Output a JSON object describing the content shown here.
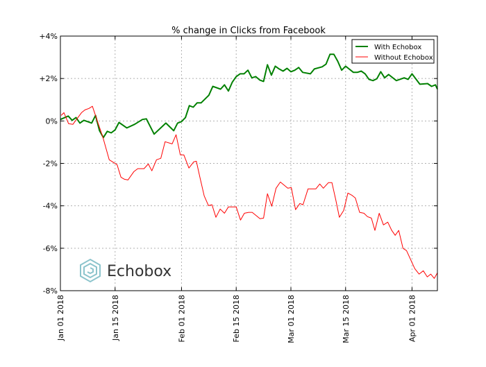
{
  "chart_data": {
    "type": "line",
    "title": "% change in Clicks from Facebook",
    "xlabel": "",
    "ylabel": "",
    "x_unit": "days since Jan 01 2018",
    "xlim": [
      0,
      96.5
    ],
    "ylim": [
      -8,
      4
    ],
    "grid": true,
    "legend_position": "top-right",
    "y_ticks": [
      {
        "value": 4,
        "label": "+4%"
      },
      {
        "value": 2,
        "label": "+2%"
      },
      {
        "value": 0,
        "label": "0%"
      },
      {
        "value": -2,
        "label": "-2%"
      },
      {
        "value": -4,
        "label": "-4%"
      },
      {
        "value": -6,
        "label": "-6%"
      },
      {
        "value": -8,
        "label": "-8%"
      }
    ],
    "x_ticks": [
      {
        "value": 0,
        "label": "Jan 01 2018"
      },
      {
        "value": 14,
        "label": "Jan 15 2018"
      },
      {
        "value": 31,
        "label": "Feb 01 2018"
      },
      {
        "value": 45,
        "label": "Feb 15 2018"
      },
      {
        "value": 59,
        "label": "Mar 01 2018"
      },
      {
        "value": 73,
        "label": "Mar 15 2018"
      },
      {
        "value": 90,
        "label": "Apr 01 2018"
      }
    ],
    "series": [
      {
        "name": "With Echobox",
        "color": "#008000",
        "x": [
          0,
          2,
          3,
          4,
          5,
          6,
          8,
          9,
          10,
          11,
          12,
          13,
          14,
          15,
          17,
          19,
          21,
          22,
          24,
          27,
          29,
          30,
          31,
          32,
          33,
          34,
          35,
          36,
          38,
          39,
          41,
          42,
          43,
          44,
          45,
          46,
          47,
          48,
          49,
          50,
          51,
          52,
          53,
          54,
          55,
          56,
          57,
          58,
          59,
          60,
          61,
          62,
          64,
          65,
          67,
          68,
          69,
          70,
          71,
          72,
          73,
          75,
          76,
          77,
          78,
          79,
          80,
          81,
          82,
          83,
          84,
          86,
          88,
          89,
          90,
          92,
          94,
          95,
          96,
          96.5
        ],
        "y": [
          0.07,
          0.23,
          0.03,
          0.16,
          -0.1,
          0.03,
          -0.1,
          0.26,
          -0.46,
          -0.78,
          -0.49,
          -0.56,
          -0.42,
          -0.07,
          -0.33,
          -0.16,
          0.07,
          0.1,
          -0.62,
          -0.1,
          -0.46,
          -0.1,
          -0.03,
          0.16,
          0.72,
          0.65,
          0.85,
          0.85,
          1.21,
          1.63,
          1.5,
          1.7,
          1.41,
          1.83,
          2.09,
          2.22,
          2.22,
          2.39,
          2.03,
          2.09,
          1.93,
          1.86,
          2.65,
          2.16,
          2.58,
          2.45,
          2.35,
          2.48,
          2.32,
          2.39,
          2.52,
          2.29,
          2.22,
          2.45,
          2.55,
          2.68,
          3.14,
          3.14,
          2.81,
          2.39,
          2.58,
          2.29,
          2.29,
          2.35,
          2.22,
          1.96,
          1.9,
          1.99,
          2.32,
          2.03,
          2.19,
          1.9,
          2.03,
          1.96,
          2.22,
          1.73,
          1.76,
          1.63,
          1.7,
          1.5
        ]
      },
      {
        "name": "Without Echobox",
        "color": "#ff0000",
        "x": [
          0.2,
          0.9,
          2.1,
          3.2,
          5.4,
          6.3,
          7.3,
          8.2,
          9.5,
          10.9,
          12.5,
          14.5,
          15.5,
          16.4,
          17.3,
          18.8,
          19.8,
          21.4,
          22.5,
          23.4,
          24.6,
          25.7,
          26.8,
          28.6,
          29.6,
          30.7,
          31.6,
          32.9,
          34.1,
          34.8,
          35.7,
          36.8,
          37.9,
          38.8,
          39.8,
          40.9,
          42.0,
          43.0,
          45.0,
          46.1,
          47.1,
          48.2,
          49.1,
          51.1,
          52.0,
          53.0,
          54.1,
          55.2,
          56.3,
          58.2,
          59.1,
          60.2,
          61.3,
          62.1,
          63.4,
          65.4,
          66.4,
          67.3,
          68.6,
          69.5,
          70.5,
          71.4,
          72.5,
          73.6,
          74.6,
          75.5,
          76.6,
          77.7,
          78.6,
          79.6,
          80.5,
          81.6,
          82.7,
          83.8,
          84.8,
          85.7,
          86.6,
          87.7,
          88.6,
          90.7,
          91.8,
          92.9,
          93.9,
          94.8,
          95.7,
          96.5
        ],
        "y": [
          0.26,
          0.39,
          -0.13,
          -0.16,
          0.39,
          0.52,
          0.59,
          0.69,
          -0.03,
          -0.78,
          -1.83,
          -2.06,
          -2.65,
          -2.75,
          -2.78,
          -2.39,
          -2.25,
          -2.25,
          -2.03,
          -2.35,
          -1.83,
          -1.76,
          -0.98,
          -1.08,
          -0.65,
          -1.6,
          -1.6,
          -2.22,
          -1.93,
          -1.9,
          -2.65,
          -3.53,
          -3.99,
          -3.95,
          -4.54,
          -4.15,
          -4.35,
          -4.05,
          -4.05,
          -4.67,
          -4.35,
          -4.31,
          -4.31,
          -4.61,
          -4.58,
          -3.43,
          -4.02,
          -3.17,
          -2.88,
          -3.17,
          -3.14,
          -4.18,
          -3.89,
          -3.95,
          -3.2,
          -3.2,
          -2.97,
          -3.17,
          -2.91,
          -2.91,
          -3.73,
          -4.54,
          -4.22,
          -3.4,
          -3.5,
          -3.63,
          -4.31,
          -4.35,
          -4.51,
          -4.58,
          -5.16,
          -4.35,
          -4.9,
          -4.77,
          -5.16,
          -5.39,
          -5.16,
          -6.01,
          -6.11,
          -6.96,
          -7.22,
          -7.06,
          -7.35,
          -7.22,
          -7.42,
          -7.16
        ]
      }
    ],
    "watermark": "Echobox"
  }
}
